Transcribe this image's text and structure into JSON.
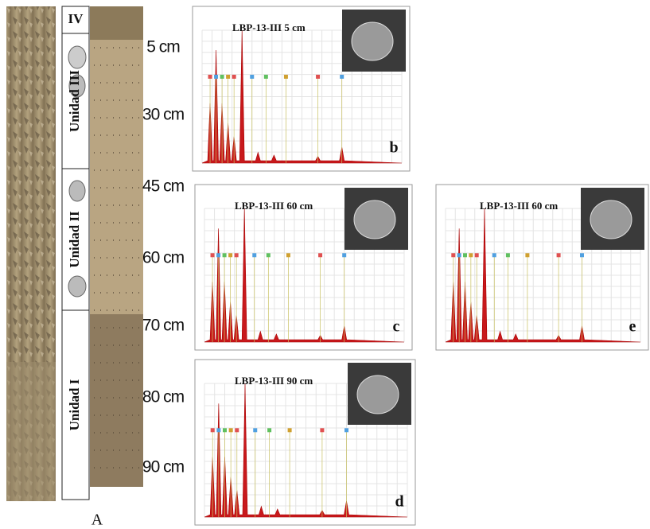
{
  "column": {
    "units": [
      "IV",
      "Unidad III",
      "Unidad II",
      "Unidad I"
    ]
  },
  "depths": [
    "5 cm",
    "30 cm",
    "45 cm",
    "60 cm",
    "70 cm",
    "80 cm",
    "90 cm"
  ],
  "label": "A",
  "panels": [
    {
      "letter": "b",
      "title": "LBP-13-III 5 cm"
    },
    {
      "letter": "c",
      "title": "LBP-13-III 60 cm"
    },
    {
      "letter": "d",
      "title": "LBP-13-III 90 cm"
    },
    {
      "letter": "e",
      "title": "LBP-13-III 60 cm"
    }
  ]
}
